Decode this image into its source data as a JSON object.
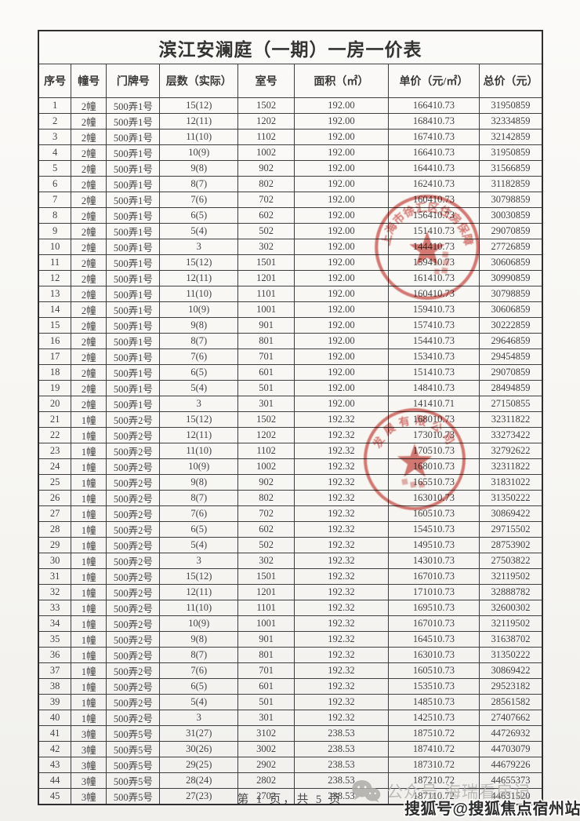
{
  "title": "滨江安澜庭（一期）一房一价表",
  "table": {
    "columns": [
      "序号",
      "幢号",
      "门牌号",
      "层数（实际）",
      "室号",
      "面积（㎡）",
      "单价（元/㎡）",
      "总价（元）"
    ],
    "rows": [
      [
        "1",
        "2幢",
        "500弄1号",
        "15(12)",
        "1502",
        "192.00",
        "166410.73",
        "31950859"
      ],
      [
        "2",
        "2幢",
        "500弄1号",
        "12(11)",
        "1202",
        "192.00",
        "168410.73",
        "32334859"
      ],
      [
        "3",
        "2幢",
        "500弄1号",
        "11(10)",
        "1102",
        "192.00",
        "167410.73",
        "32142859"
      ],
      [
        "4",
        "2幢",
        "500弄1号",
        "10(9)",
        "1002",
        "192.00",
        "166410.73",
        "31950859"
      ],
      [
        "5",
        "2幢",
        "500弄1号",
        "9(8)",
        "902",
        "192.00",
        "164410.73",
        "31566859"
      ],
      [
        "6",
        "2幢",
        "500弄1号",
        "8(7)",
        "802",
        "192.00",
        "162410.73",
        "31182859"
      ],
      [
        "7",
        "2幢",
        "500弄1号",
        "7(6)",
        "702",
        "192.00",
        "160410.73",
        "30798859"
      ],
      [
        "8",
        "2幢",
        "500弄1号",
        "6(5)",
        "602",
        "192.00",
        "156410.73",
        "30030859"
      ],
      [
        "9",
        "2幢",
        "500弄1号",
        "5(4)",
        "502",
        "192.00",
        "151410.73",
        "29070859"
      ],
      [
        "10",
        "2幢",
        "500弄1号",
        "3",
        "302",
        "192.00",
        "144410.73",
        "27726859"
      ],
      [
        "11",
        "2幢",
        "500弄1号",
        "15(12)",
        "1501",
        "192.00",
        "159410.73",
        "30606859"
      ],
      [
        "12",
        "2幢",
        "500弄1号",
        "12(11)",
        "1201",
        "192.00",
        "161410.73",
        "30990859"
      ],
      [
        "13",
        "2幢",
        "500弄1号",
        "11(10)",
        "1101",
        "192.00",
        "160410.73",
        "30798859"
      ],
      [
        "14",
        "2幢",
        "500弄1号",
        "10(9)",
        "1001",
        "192.00",
        "159410.73",
        "30606859"
      ],
      [
        "15",
        "2幢",
        "500弄1号",
        "9(8)",
        "901",
        "192.00",
        "157410.73",
        "30222859"
      ],
      [
        "16",
        "2幢",
        "500弄1号",
        "8(7)",
        "801",
        "192.00",
        "154410.73",
        "29646859"
      ],
      [
        "17",
        "2幢",
        "500弄1号",
        "7(6)",
        "701",
        "192.00",
        "153410.73",
        "29454859"
      ],
      [
        "18",
        "2幢",
        "500弄1号",
        "6(5)",
        "601",
        "192.00",
        "151410.73",
        "29070859"
      ],
      [
        "19",
        "2幢",
        "500弄1号",
        "5(4)",
        "501",
        "192.00",
        "148410.73",
        "28494859"
      ],
      [
        "20",
        "2幢",
        "500弄1号",
        "3",
        "301",
        "192.00",
        "141410.71",
        "27150855"
      ],
      [
        "21",
        "1幢",
        "500弄2号",
        "15(12)",
        "1502",
        "192.32",
        "168010.73",
        "32311822"
      ],
      [
        "22",
        "1幢",
        "500弄2号",
        "12(11)",
        "1202",
        "192.32",
        "173010.73",
        "33273422"
      ],
      [
        "23",
        "1幢",
        "500弄2号",
        "11(10)",
        "1102",
        "192.32",
        "170510.73",
        "32792622"
      ],
      [
        "24",
        "1幢",
        "500弄2号",
        "10(9)",
        "1002",
        "192.32",
        "168010.73",
        "32311822"
      ],
      [
        "25",
        "1幢",
        "500弄2号",
        "9(8)",
        "902",
        "192.32",
        "165510.73",
        "31831022"
      ],
      [
        "26",
        "1幢",
        "500弄2号",
        "8(7)",
        "802",
        "192.32",
        "163010.73",
        "31350222"
      ],
      [
        "27",
        "1幢",
        "500弄2号",
        "7(6)",
        "702",
        "192.32",
        "160510.73",
        "30869422"
      ],
      [
        "28",
        "1幢",
        "500弄2号",
        "6(5)",
        "602",
        "192.32",
        "154510.73",
        "29715502"
      ],
      [
        "29",
        "1幢",
        "500弄2号",
        "5(4)",
        "502",
        "192.32",
        "149510.73",
        "28753902"
      ],
      [
        "30",
        "1幢",
        "500弄2号",
        "3",
        "302",
        "192.32",
        "143010.73",
        "27503822"
      ],
      [
        "31",
        "1幢",
        "500弄2号",
        "15(12)",
        "1501",
        "192.32",
        "167010.73",
        "32119502"
      ],
      [
        "32",
        "1幢",
        "500弄2号",
        "12(11)",
        "1201",
        "192.32",
        "171010.73",
        "32888782"
      ],
      [
        "33",
        "1幢",
        "500弄2号",
        "11(10)",
        "1101",
        "192.32",
        "169510.73",
        "32600302"
      ],
      [
        "34",
        "1幢",
        "500弄2号",
        "10(9)",
        "1001",
        "192.32",
        "167010.73",
        "32119502"
      ],
      [
        "35",
        "1幢",
        "500弄2号",
        "9(8)",
        "901",
        "192.32",
        "164510.73",
        "31638702"
      ],
      [
        "36",
        "1幢",
        "500弄2号",
        "8(7)",
        "801",
        "192.32",
        "163010.73",
        "31350222"
      ],
      [
        "37",
        "1幢",
        "500弄2号",
        "7(6)",
        "701",
        "192.32",
        "160510.73",
        "30869422"
      ],
      [
        "38",
        "1幢",
        "500弄2号",
        "6(5)",
        "601",
        "192.32",
        "153510.73",
        "29523182"
      ],
      [
        "39",
        "1幢",
        "500弄2号",
        "5(4)",
        "501",
        "192.32",
        "148510.73",
        "28561582"
      ],
      [
        "40",
        "1幢",
        "500弄2号",
        "3",
        "301",
        "192.32",
        "142510.73",
        "27407662"
      ],
      [
        "41",
        "3幢",
        "500弄5号",
        "31(27)",
        "3102",
        "238.53",
        "187510.72",
        "44726932"
      ],
      [
        "42",
        "3幢",
        "500弄5号",
        "30(26)",
        "3002",
        "238.53",
        "187410.72",
        "44703079"
      ],
      [
        "43",
        "3幢",
        "500弄5号",
        "29(25)",
        "2902",
        "238.53",
        "187310.72",
        "44679226"
      ],
      [
        "44",
        "3幢",
        "500弄5号",
        "28(24)",
        "2802",
        "238.53",
        "187210.72",
        "44655373"
      ],
      [
        "45",
        "3幢",
        "500弄5号",
        "27(23)",
        "2702",
        "238.53",
        "187110.72",
        "44631520"
      ]
    ]
  },
  "seals": [
    {
      "arc_text": "上海市徐汇区住房保障",
      "color": "#c8423c"
    },
    {
      "arc_text": "发展有限公司",
      "color": "#c8423c"
    }
  ],
  "footer": {
    "page_info": "第 1 页，共 5 页"
  },
  "watermarks": {
    "icon": "wechat-icon",
    "light_line": "公众号·海瑞看房记",
    "dark_line": "搜狐号@搜狐焦点宿州站"
  },
  "colors": {
    "seal_red": "#c8423c",
    "border": "#3e3e3e",
    "text": "#3b3b3b",
    "watermark_gray": "#b3b2ae"
  }
}
